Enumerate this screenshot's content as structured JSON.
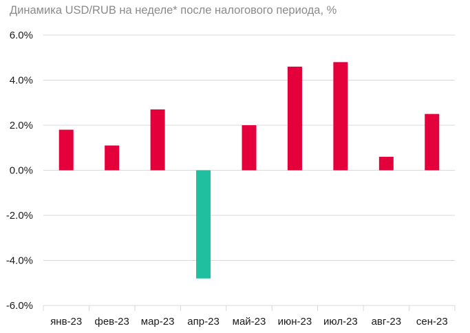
{
  "chart_data": {
    "type": "bar",
    "title": "Динамика USD/RUB на неделе* после налогового периода, %",
    "xlabel": "",
    "ylabel": "",
    "categories": [
      "янв-23",
      "фев-23",
      "мар-23",
      "апр-23",
      "май-23",
      "июн-23",
      "июл-23",
      "авг-23",
      "сен-23"
    ],
    "values": [
      1.8,
      1.1,
      2.7,
      -4.8,
      2.0,
      4.6,
      4.8,
      0.6,
      2.5
    ],
    "ylim": [
      -6.0,
      6.0
    ],
    "yticks": [
      6.0,
      4.0,
      2.0,
      0.0,
      -2.0,
      -4.0,
      -6.0
    ],
    "ytick_labels": [
      "6.0%",
      "4.0%",
      "2.0%",
      "0.0%",
      "-2.0%",
      "-4.0%",
      "-6.0%"
    ],
    "grid": true,
    "legend": "none",
    "colors": {
      "positive": "#e4003a",
      "negative": "#1fbfa0",
      "grid": "#d9d9d9",
      "title": "#8a8a8a"
    }
  }
}
